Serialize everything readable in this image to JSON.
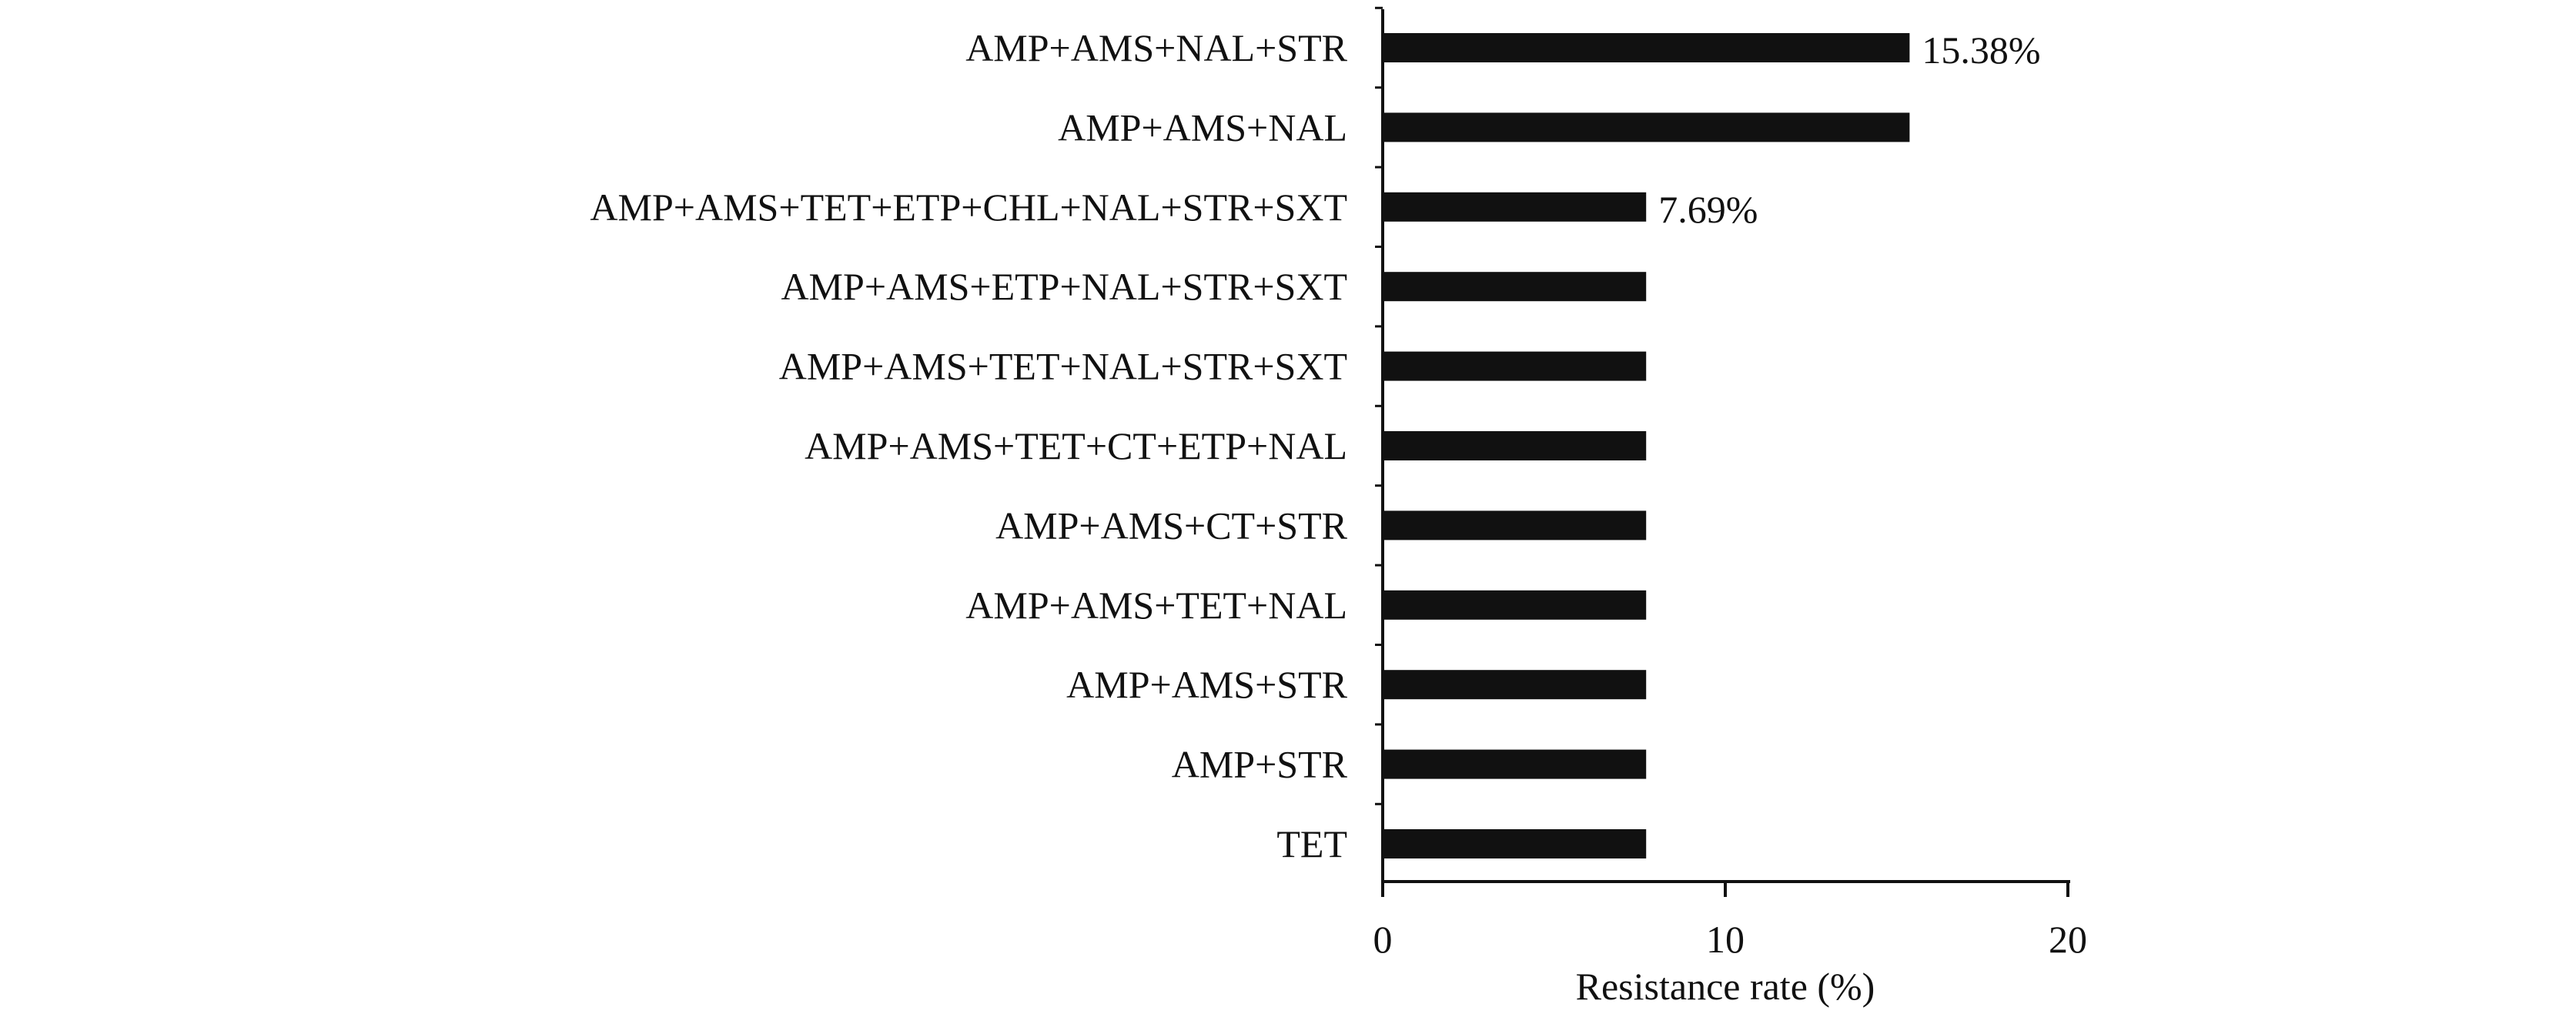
{
  "chart_data": {
    "type": "bar",
    "orientation": "horizontal",
    "title": "",
    "xlabel": "Resistance rate (%)",
    "ylabel": "",
    "xlim": [
      0,
      20
    ],
    "xticks": [
      "0",
      "10",
      "20"
    ],
    "grid": false,
    "legend": "none",
    "categories": [
      "AMP+AMS+NAL+STR",
      "AMP+AMS+NAL",
      "AMP+AMS+TET+ETP+CHL+NAL+STR+SXT",
      "AMP+AMS+ETP+NAL+STR+SXT",
      "AMP+AMS+TET+NAL+STR+SXT",
      "AMP+AMS+TET+CT+ETP+NAL",
      "AMP+AMS+CT+STR",
      "AMP+AMS+TET+NAL",
      "AMP+AMS+STR",
      "AMP+STR",
      "TET"
    ],
    "values": [
      15.38,
      15.38,
      7.69,
      7.69,
      7.69,
      7.69,
      7.69,
      7.69,
      7.69,
      7.69,
      7.69
    ],
    "data_labels": [
      "15.38%",
      "",
      "7.69%",
      "",
      "",
      "",
      "",
      "",
      "",
      "",
      ""
    ],
    "bar_color": "#111111"
  }
}
